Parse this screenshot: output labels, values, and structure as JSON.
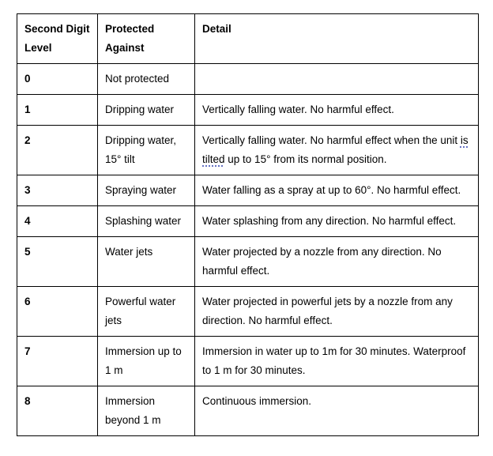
{
  "table": {
    "grammar_underline_color": "#6672c4",
    "headers": [
      "Second Digit\nLevel",
      "Protected\nAgainst",
      "Detail"
    ],
    "rows": [
      {
        "level": "0",
        "protected_against": "Not protected",
        "detail": ""
      },
      {
        "level": "1",
        "protected_against": "Dripping water",
        "detail": "Vertically falling water. No harmful effect."
      },
      {
        "level": "2",
        "protected_against": "Dripping water,\n15° tilt",
        "detail_segments": [
          {
            "text": "Vertically falling water. No harmful effect when the unit "
          },
          {
            "text": "is",
            "grammar_underline": true
          },
          {
            "text": "\n"
          },
          {
            "text": "tilted",
            "grammar_underline": true
          },
          {
            "text": " up to 15° from its normal position."
          }
        ]
      },
      {
        "level": "3",
        "protected_against": "Spraying water",
        "detail": "Water falling as a spray at up to 60°. No harmful effect."
      },
      {
        "level": "4",
        "protected_against": "Splashing water",
        "detail": "Water splashing from any direction. No harmful effect."
      },
      {
        "level": "5",
        "protected_against": "Water jets",
        "detail": "Water projected by a nozzle from any direction. No\nharmful effect."
      },
      {
        "level": "6",
        "protected_against": "Powerful water\njets",
        "detail": "Water projected in powerful jets by a nozzle from any\ndirection. No harmful effect."
      },
      {
        "level": "7",
        "protected_against": "Immersion up to\n1 m",
        "detail": "Immersion in water up to 1m for 30 minutes. Waterproof\nto 1 m for 30 minutes."
      },
      {
        "level": "8",
        "protected_against": "Immersion\nbeyond 1 m",
        "detail": "Continuous immersion."
      }
    ]
  }
}
